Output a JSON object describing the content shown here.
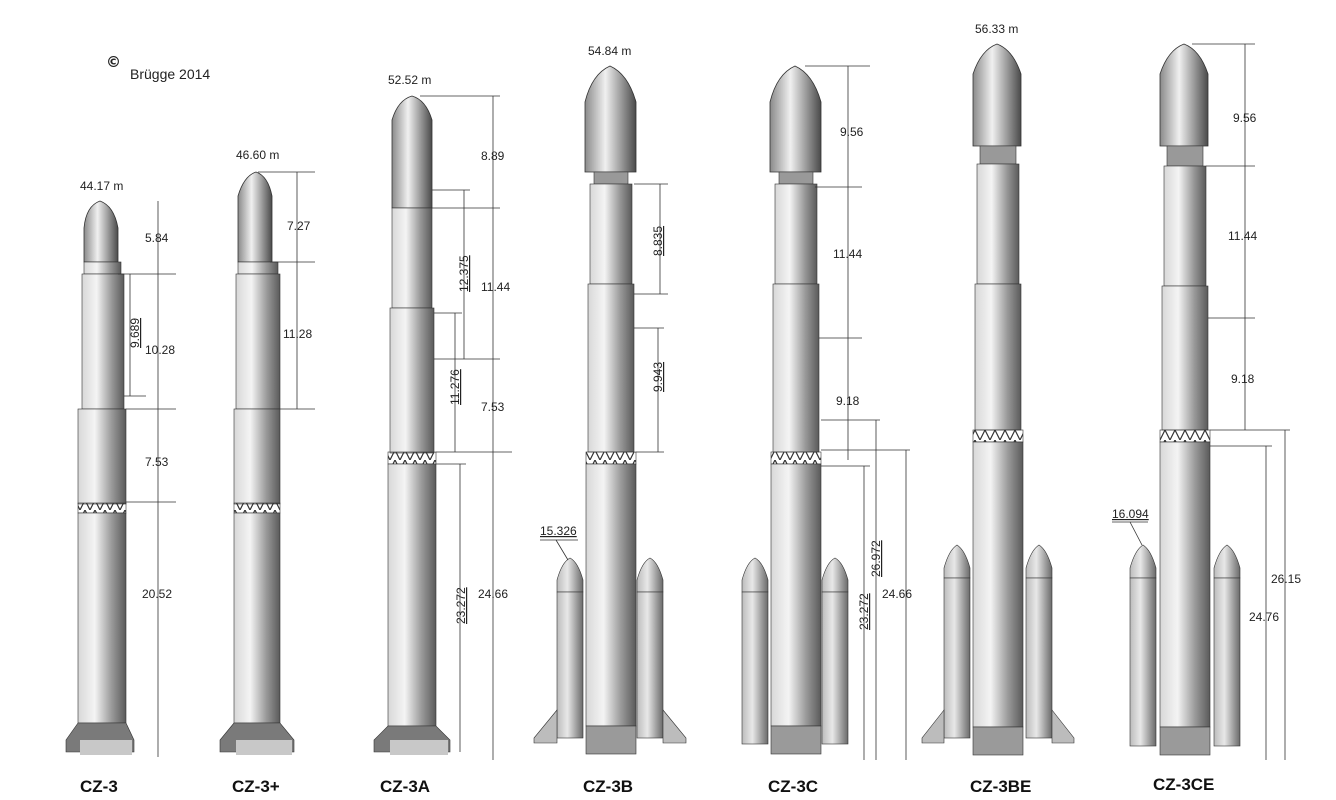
{
  "credit": {
    "symbol": "©",
    "text": "Brügge 2014"
  },
  "rockets": [
    {
      "name": "CZ-3",
      "total_height": "44.17 m",
      "has_boosters": false,
      "dims": [
        "5.84",
        "9.689",
        "10.28",
        "7.53",
        "20.52"
      ]
    },
    {
      "name": "CZ-3+",
      "total_height": "46.60 m",
      "has_boosters": false,
      "dims": [
        "7.27",
        "11.28"
      ]
    },
    {
      "name": "CZ-3A",
      "total_height": "52.52 m",
      "has_boosters": false,
      "dims": [
        "8.89",
        "12.375",
        "11.44",
        "11.276",
        "7.53",
        "23.272",
        "24.66"
      ]
    },
    {
      "name": "CZ-3B",
      "total_height": "54.84 m",
      "has_boosters": true,
      "booster_label": "15.326",
      "dims": [
        "8.835",
        "9.943"
      ]
    },
    {
      "name": "CZ-3C",
      "total_height": "",
      "has_boosters": true,
      "dims": [
        "9.56",
        "11.44",
        "9.18",
        "26.972",
        "23.272",
        "24.66"
      ]
    },
    {
      "name": "CZ-3BE",
      "total_height": "56.33 m",
      "has_boosters": true,
      "dims": []
    },
    {
      "name": "CZ-3CE",
      "total_height": "",
      "has_boosters": true,
      "booster_label": "16.094",
      "dims": [
        "9.56",
        "11.44",
        "9.18",
        "26.15",
        "24.76"
      ]
    }
  ]
}
